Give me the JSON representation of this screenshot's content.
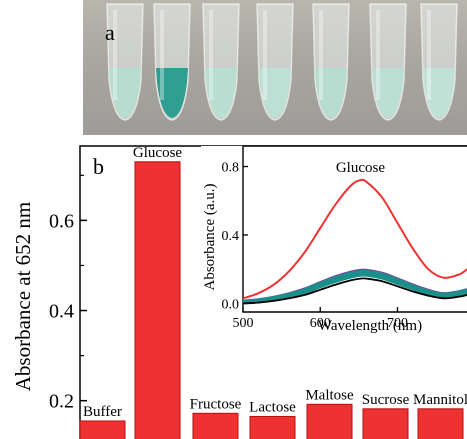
{
  "panel_a": {
    "label": "a",
    "tubes": [
      {
        "solution": "light-green",
        "color": "#b7ddd0"
      },
      {
        "solution": "dark-teal",
        "color": "#2e9f91"
      },
      {
        "solution": "light-green",
        "color": "#b9dfd2"
      },
      {
        "solution": "light-green",
        "color": "#bde0d4"
      },
      {
        "solution": "light-green",
        "color": "#b6dccf"
      },
      {
        "solution": "light-green",
        "color": "#bbdfd3"
      },
      {
        "solution": "light-green",
        "color": "#c0e2d6"
      }
    ]
  },
  "panel_b_label": "b",
  "colors": {
    "bar": "#ee3232",
    "bar_edge": "#b80f0f",
    "glucose_curve": "#ee3232",
    "other_curves": "#000000",
    "purple_band": "#7a3fa0",
    "teal_band": "#1b8f8a"
  },
  "chart_data": [
    {
      "type": "bar",
      "title": "",
      "xlabel": "",
      "ylabel": "Absorbance at 652 nm",
      "ylim": [
        0.115,
        0.765
      ],
      "yticks": [
        0.2,
        0.4,
        0.6
      ],
      "ytick_labels": [
        "0.2",
        "0.4",
        "0.6"
      ],
      "categories": [
        "Buffer",
        "Glucose",
        "Fructose",
        "Lactose",
        "Maltose",
        "Sucrose",
        "Mannitol"
      ],
      "values": [
        0.155,
        0.73,
        0.172,
        0.165,
        0.192,
        0.182,
        0.182
      ],
      "bar_labels": [
        "Buffer",
        "Glucose",
        "Fructose",
        "Lactose",
        "Maltose",
        "Sucrose",
        "Mannitol"
      ]
    },
    {
      "type": "line",
      "title": "",
      "xlabel": "Wavelength (nm)",
      "ylabel": "Absorbance (a.u.)",
      "xlim": [
        500,
        790
      ],
      "ylim": [
        -0.05,
        0.92
      ],
      "xticks": [
        500,
        600,
        700
      ],
      "xtick_labels": [
        "500",
        "600",
        "700"
      ],
      "yticks": [
        0.0,
        0.4,
        0.8
      ],
      "ytick_labels": [
        "0.0",
        "0.4",
        "0.8"
      ],
      "annotation": "Glucose",
      "series": [
        {
          "label": "Glucose",
          "x": [
            500,
            520,
            540,
            560,
            580,
            600,
            620,
            640,
            652,
            660,
            680,
            700,
            720,
            740,
            760,
            780,
            790
          ],
          "y": [
            0.03,
            0.06,
            0.11,
            0.19,
            0.3,
            0.44,
            0.58,
            0.69,
            0.72,
            0.71,
            0.62,
            0.47,
            0.32,
            0.2,
            0.15,
            0.17,
            0.2
          ]
        },
        {
          "x": [
            500,
            520,
            540,
            560,
            580,
            600,
            620,
            640,
            652,
            660,
            680,
            700,
            720,
            740,
            760,
            780,
            790
          ],
          "y": [
            0.0,
            0.005,
            0.015,
            0.03,
            0.05,
            0.08,
            0.11,
            0.135,
            0.145,
            0.145,
            0.13,
            0.1,
            0.07,
            0.045,
            0.03,
            0.04,
            0.05
          ]
        },
        {
          "x": [
            500,
            520,
            540,
            560,
            580,
            600,
            620,
            640,
            652,
            660,
            680,
            700,
            720,
            740,
            760,
            780,
            790
          ],
          "y": [
            0.005,
            0.012,
            0.024,
            0.042,
            0.066,
            0.1,
            0.132,
            0.158,
            0.168,
            0.168,
            0.152,
            0.12,
            0.088,
            0.06,
            0.044,
            0.055,
            0.066
          ]
        },
        {
          "x": [
            500,
            520,
            540,
            560,
            580,
            600,
            620,
            640,
            652,
            660,
            680,
            700,
            720,
            740,
            760,
            780,
            790
          ],
          "y": [
            0.01,
            0.018,
            0.032,
            0.052,
            0.078,
            0.114,
            0.148,
            0.175,
            0.185,
            0.185,
            0.168,
            0.135,
            0.1,
            0.07,
            0.052,
            0.064,
            0.076
          ]
        },
        {
          "x": [
            500,
            520,
            540,
            560,
            580,
            600,
            620,
            640,
            652,
            660,
            680,
            700,
            720,
            740,
            760,
            780,
            790
          ],
          "y": [
            0.012,
            0.02,
            0.035,
            0.056,
            0.083,
            0.12,
            0.155,
            0.182,
            0.192,
            0.192,
            0.175,
            0.142,
            0.106,
            0.075,
            0.056,
            0.068,
            0.08
          ]
        }
      ]
    }
  ]
}
